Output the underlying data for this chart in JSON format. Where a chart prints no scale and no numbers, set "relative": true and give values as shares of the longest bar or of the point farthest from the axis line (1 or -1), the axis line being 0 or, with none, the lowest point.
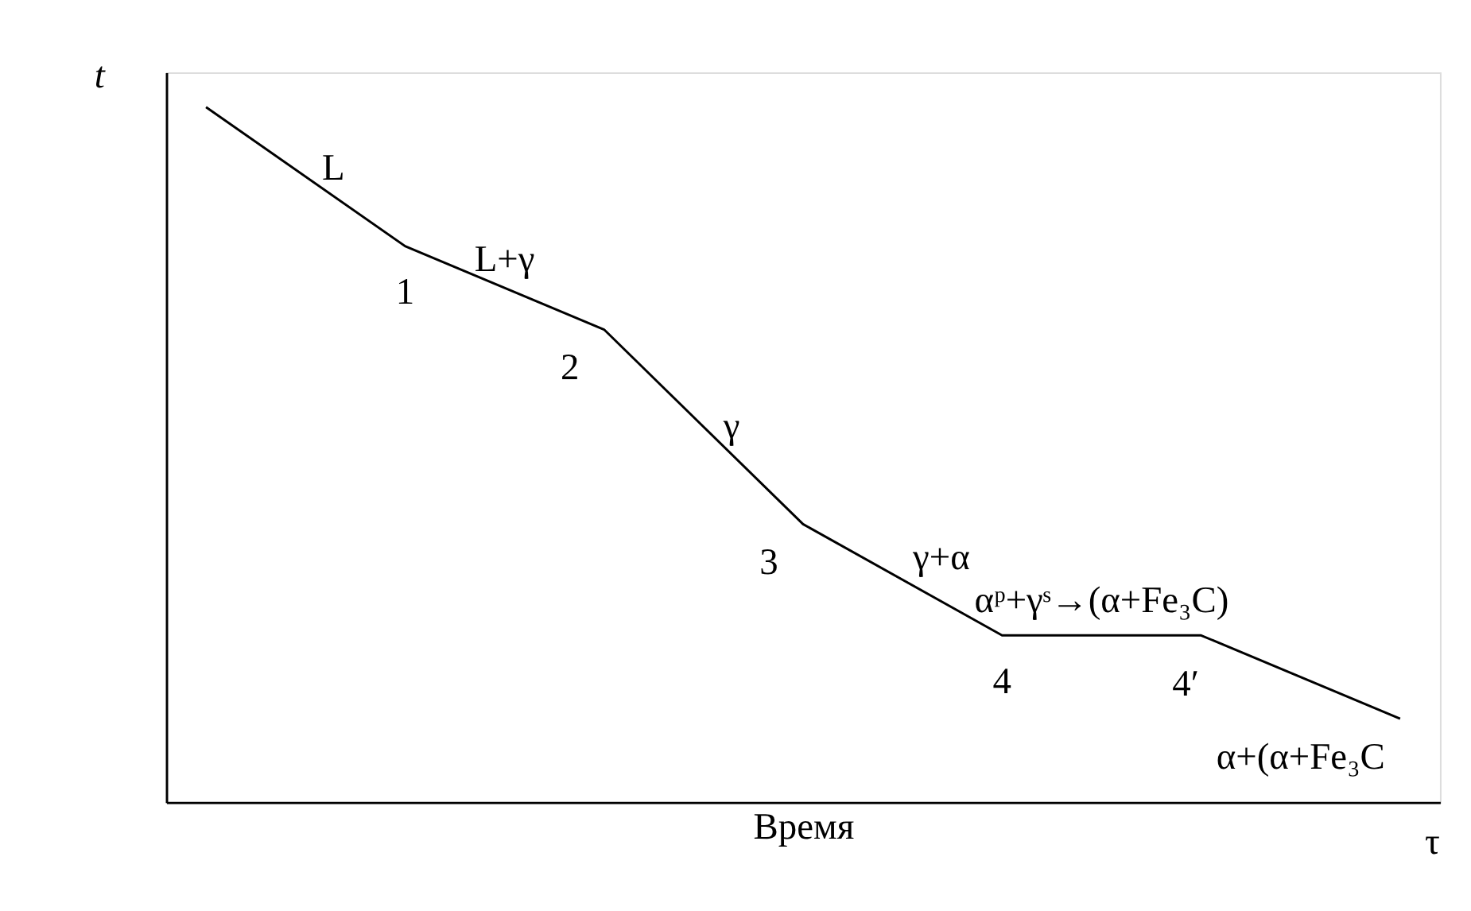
{
  "chart_data": {
    "type": "line",
    "relative": true,
    "xlabel": "Время",
    "ylabel": "t",
    "categories": [
      null,
      null,
      null,
      null,
      null,
      null,
      null
    ],
    "tick_labels": false,
    "series": [
      {
        "color": "#000000",
        "values": [
          1,
          0.8,
          0.68,
          0.4,
          0.24,
          0.24,
          0.12
        ]
      }
    ],
    "grid": false,
    "marker": "none",
    "annotations": [
      "L",
      "1",
      "L+γ",
      "2",
      "γ",
      "3",
      "γ+α",
      "4",
      "αᵖ+γˢ→(α+Fe₃C)",
      "4′",
      "α+(α+Fe₃C",
      "τ"
    ]
  }
}
